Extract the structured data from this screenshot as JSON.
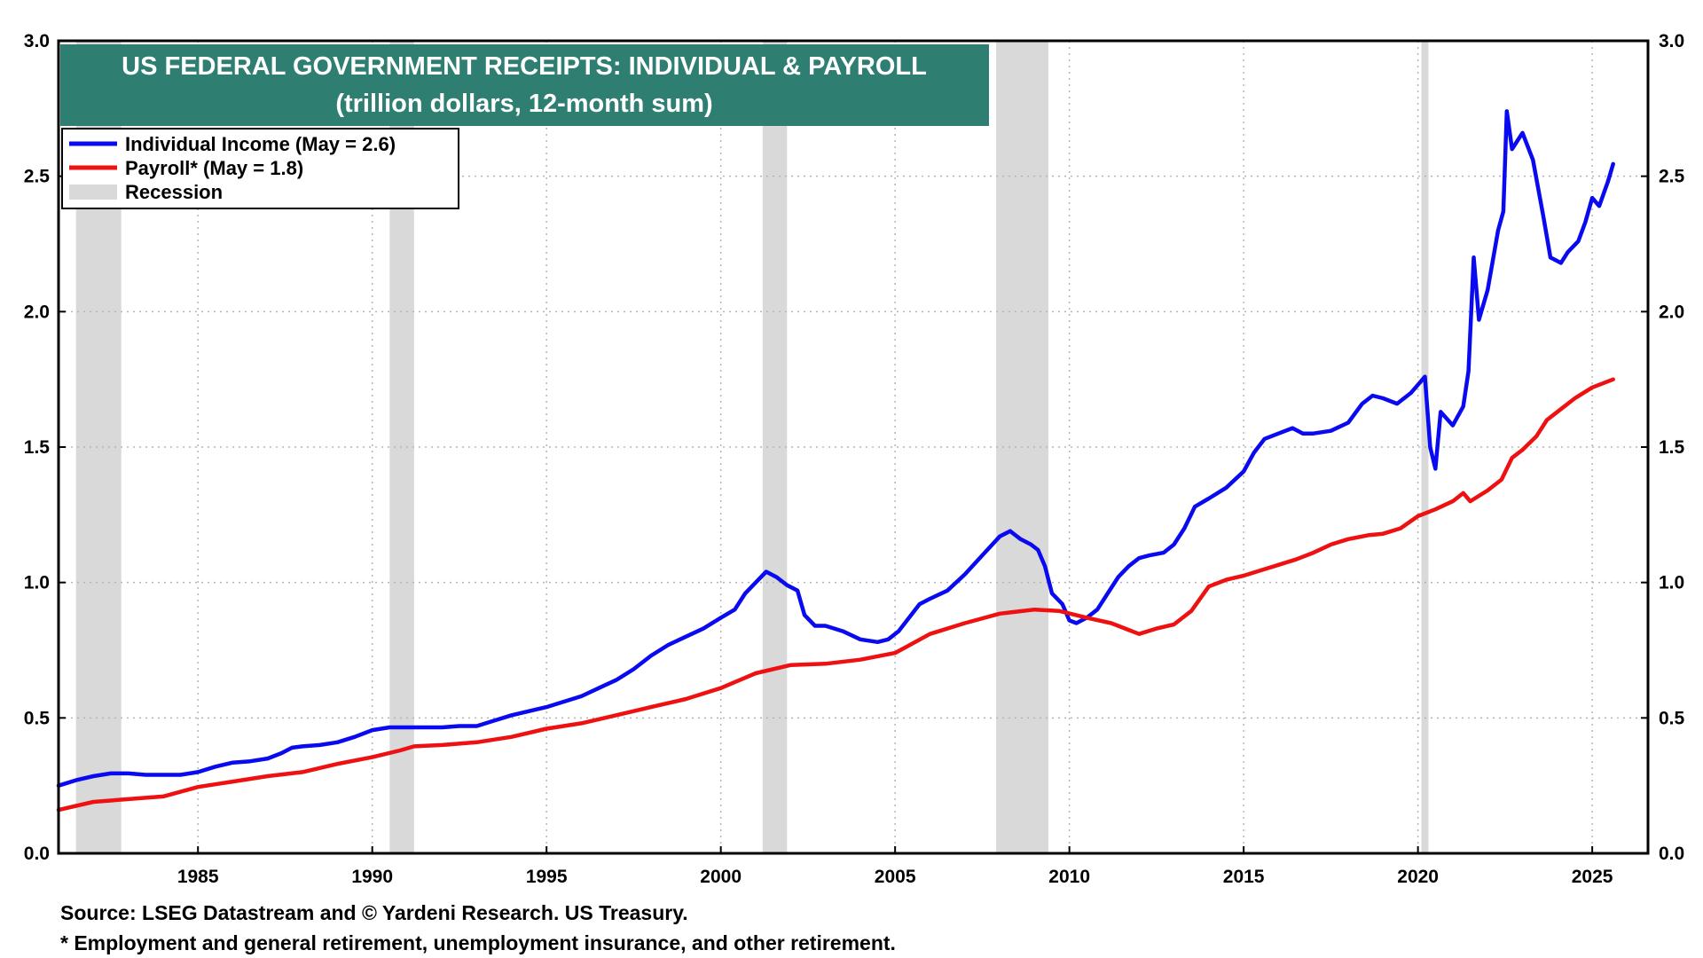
{
  "chart_data": {
    "type": "line",
    "title": "US FEDERAL GOVERNMENT RECEIPTS: INDIVIDUAL & PAYROLL",
    "subtitle": "(trillion dollars, 12-month sum)",
    "ylim": [
      0,
      3
    ],
    "xlim": [
      1981.0,
      2026.6
    ],
    "y_ticks": [
      "0.0",
      "0.5",
      "1.0",
      "1.5",
      "2.0",
      "2.5",
      "3.0"
    ],
    "x_ticks": [
      "1985",
      "1990",
      "1995",
      "2000",
      "2005",
      "2010",
      "2015",
      "2020",
      "2025"
    ],
    "grid": true,
    "legend_position": "top-left",
    "legend": [
      {
        "label": "Individual Income (May = 2.6)",
        "kind": "line",
        "color": "#0a0af0"
      },
      {
        "label": "Payroll* (May = 1.8)",
        "kind": "line",
        "color": "#ee1111"
      },
      {
        "label": "Recession",
        "kind": "band",
        "color": "#d9d9d9"
      }
    ],
    "recessions": [
      [
        1981.5,
        1982.8
      ],
      [
        1990.5,
        1991.2
      ],
      [
        2001.2,
        2001.9
      ],
      [
        2007.9,
        2009.4
      ],
      [
        2020.1,
        2020.3
      ]
    ],
    "series": [
      {
        "name": "Individual Income (May = 2.6)",
        "color": "#0a0af0",
        "points": [
          [
            1981.0,
            0.25
          ],
          [
            1981.5,
            0.27
          ],
          [
            1982.0,
            0.285
          ],
          [
            1982.5,
            0.295
          ],
          [
            1983.0,
            0.295
          ],
          [
            1983.5,
            0.29
          ],
          [
            1984.0,
            0.29
          ],
          [
            1984.5,
            0.29
          ],
          [
            1985.0,
            0.3
          ],
          [
            1985.5,
            0.32
          ],
          [
            1986.0,
            0.335
          ],
          [
            1986.5,
            0.34
          ],
          [
            1987.0,
            0.35
          ],
          [
            1987.4,
            0.37
          ],
          [
            1987.7,
            0.39
          ],
          [
            1988.0,
            0.395
          ],
          [
            1988.5,
            0.4
          ],
          [
            1989.0,
            0.41
          ],
          [
            1989.5,
            0.43
          ],
          [
            1990.0,
            0.455
          ],
          [
            1990.5,
            0.465
          ],
          [
            1991.0,
            0.465
          ],
          [
            1991.5,
            0.465
          ],
          [
            1992.0,
            0.465
          ],
          [
            1992.5,
            0.47
          ],
          [
            1993.0,
            0.47
          ],
          [
            1993.5,
            0.49
          ],
          [
            1994.0,
            0.51
          ],
          [
            1994.5,
            0.525
          ],
          [
            1995.0,
            0.54
          ],
          [
            1995.5,
            0.56
          ],
          [
            1996.0,
            0.58
          ],
          [
            1996.5,
            0.61
          ],
          [
            1997.0,
            0.64
          ],
          [
            1997.5,
            0.68
          ],
          [
            1998.0,
            0.73
          ],
          [
            1998.5,
            0.77
          ],
          [
            1999.0,
            0.8
          ],
          [
            1999.5,
            0.83
          ],
          [
            2000.0,
            0.87
          ],
          [
            2000.4,
            0.9
          ],
          [
            2000.7,
            0.96
          ],
          [
            2001.0,
            1.0
          ],
          [
            2001.3,
            1.04
          ],
          [
            2001.6,
            1.02
          ],
          [
            2001.9,
            0.99
          ],
          [
            2002.2,
            0.97
          ],
          [
            2002.4,
            0.88
          ],
          [
            2002.7,
            0.84
          ],
          [
            2003.0,
            0.84
          ],
          [
            2003.5,
            0.82
          ],
          [
            2004.0,
            0.79
          ],
          [
            2004.5,
            0.78
          ],
          [
            2004.8,
            0.79
          ],
          [
            2005.1,
            0.82
          ],
          [
            2005.4,
            0.87
          ],
          [
            2005.7,
            0.92
          ],
          [
            2006.0,
            0.94
          ],
          [
            2006.5,
            0.97
          ],
          [
            2007.0,
            1.03
          ],
          [
            2007.5,
            1.1
          ],
          [
            2008.0,
            1.17
          ],
          [
            2008.3,
            1.19
          ],
          [
            2008.6,
            1.16
          ],
          [
            2008.9,
            1.14
          ],
          [
            2009.1,
            1.12
          ],
          [
            2009.3,
            1.06
          ],
          [
            2009.5,
            0.96
          ],
          [
            2009.8,
            0.92
          ],
          [
            2010.0,
            0.86
          ],
          [
            2010.2,
            0.85
          ],
          [
            2010.5,
            0.87
          ],
          [
            2010.8,
            0.9
          ],
          [
            2011.1,
            0.96
          ],
          [
            2011.4,
            1.02
          ],
          [
            2011.7,
            1.06
          ],
          [
            2012.0,
            1.09
          ],
          [
            2012.3,
            1.1
          ],
          [
            2012.7,
            1.11
          ],
          [
            2013.0,
            1.14
          ],
          [
            2013.3,
            1.2
          ],
          [
            2013.6,
            1.28
          ],
          [
            2014.0,
            1.31
          ],
          [
            2014.5,
            1.35
          ],
          [
            2015.0,
            1.41
          ],
          [
            2015.3,
            1.48
          ],
          [
            2015.6,
            1.53
          ],
          [
            2016.0,
            1.55
          ],
          [
            2016.4,
            1.57
          ],
          [
            2016.7,
            1.55
          ],
          [
            2017.0,
            1.55
          ],
          [
            2017.5,
            1.56
          ],
          [
            2018.0,
            1.59
          ],
          [
            2018.4,
            1.66
          ],
          [
            2018.7,
            1.69
          ],
          [
            2019.0,
            1.68
          ],
          [
            2019.4,
            1.66
          ],
          [
            2019.8,
            1.7
          ],
          [
            2020.0,
            1.73
          ],
          [
            2020.2,
            1.76
          ],
          [
            2020.35,
            1.5
          ],
          [
            2020.5,
            1.42
          ],
          [
            2020.65,
            1.63
          ],
          [
            2021.0,
            1.58
          ],
          [
            2021.3,
            1.65
          ],
          [
            2021.45,
            1.78
          ],
          [
            2021.6,
            2.2
          ],
          [
            2021.75,
            1.97
          ],
          [
            2022.0,
            2.08
          ],
          [
            2022.3,
            2.3
          ],
          [
            2022.45,
            2.37
          ],
          [
            2022.55,
            2.74
          ],
          [
            2022.7,
            2.6
          ],
          [
            2022.9,
            2.64
          ],
          [
            2023.0,
            2.66
          ],
          [
            2023.3,
            2.56
          ],
          [
            2023.6,
            2.35
          ],
          [
            2023.8,
            2.2
          ],
          [
            2024.1,
            2.18
          ],
          [
            2024.3,
            2.22
          ],
          [
            2024.6,
            2.26
          ],
          [
            2024.8,
            2.33
          ],
          [
            2025.0,
            2.42
          ],
          [
            2025.2,
            2.39
          ],
          [
            2025.45,
            2.48
          ],
          [
            2025.6,
            2.545
          ]
        ]
      },
      {
        "name": "Payroll* (May = 1.8)",
        "color": "#ee1111",
        "points": [
          [
            1981.0,
            0.16
          ],
          [
            1982.0,
            0.19
          ],
          [
            1983.0,
            0.2
          ],
          [
            1984.0,
            0.21
          ],
          [
            1985.0,
            0.245
          ],
          [
            1986.0,
            0.265
          ],
          [
            1987.0,
            0.285
          ],
          [
            1988.0,
            0.3
          ],
          [
            1989.0,
            0.33
          ],
          [
            1990.0,
            0.355
          ],
          [
            1990.8,
            0.38
          ],
          [
            1991.2,
            0.395
          ],
          [
            1992.0,
            0.4
          ],
          [
            1993.0,
            0.41
          ],
          [
            1994.0,
            0.43
          ],
          [
            1995.0,
            0.46
          ],
          [
            1996.0,
            0.48
          ],
          [
            1997.0,
            0.51
          ],
          [
            1998.0,
            0.54
          ],
          [
            1999.0,
            0.57
          ],
          [
            2000.0,
            0.61
          ],
          [
            2001.0,
            0.665
          ],
          [
            2002.0,
            0.695
          ],
          [
            2003.0,
            0.7
          ],
          [
            2004.0,
            0.715
          ],
          [
            2005.0,
            0.74
          ],
          [
            2006.0,
            0.81
          ],
          [
            2007.0,
            0.85
          ],
          [
            2008.0,
            0.885
          ],
          [
            2009.0,
            0.9
          ],
          [
            2009.7,
            0.895
          ],
          [
            2010.5,
            0.87
          ],
          [
            2011.2,
            0.85
          ],
          [
            2012.0,
            0.81
          ],
          [
            2012.5,
            0.83
          ],
          [
            2013.0,
            0.845
          ],
          [
            2013.5,
            0.895
          ],
          [
            2014.0,
            0.985
          ],
          [
            2014.5,
            1.01
          ],
          [
            2015.0,
            1.025
          ],
          [
            2015.5,
            1.045
          ],
          [
            2016.0,
            1.065
          ],
          [
            2016.5,
            1.085
          ],
          [
            2017.0,
            1.11
          ],
          [
            2017.5,
            1.14
          ],
          [
            2018.0,
            1.16
          ],
          [
            2018.6,
            1.175
          ],
          [
            2019.0,
            1.18
          ],
          [
            2019.5,
            1.2
          ],
          [
            2020.0,
            1.245
          ],
          [
            2020.5,
            1.27
          ],
          [
            2021.0,
            1.3
          ],
          [
            2021.3,
            1.33
          ],
          [
            2021.5,
            1.3
          ],
          [
            2022.0,
            1.34
          ],
          [
            2022.4,
            1.38
          ],
          [
            2022.7,
            1.46
          ],
          [
            2023.0,
            1.49
          ],
          [
            2023.4,
            1.54
          ],
          [
            2023.7,
            1.6
          ],
          [
            2024.0,
            1.63
          ],
          [
            2024.5,
            1.68
          ],
          [
            2025.0,
            1.72
          ],
          [
            2025.6,
            1.75
          ]
        ]
      }
    ]
  },
  "footer": {
    "source": "Source: LSEG Datastream and © Yardeni Research. US Treasury.",
    "note": "* Employment and general  retirement, unemployment insurance, and other retirement."
  }
}
